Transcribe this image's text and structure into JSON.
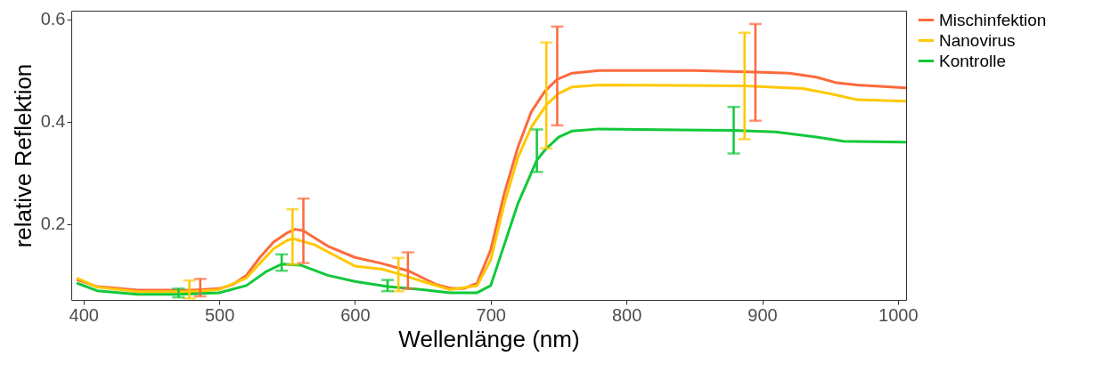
{
  "chart_data": {
    "type": "line",
    "xlabel": "Wellenlänge (nm)",
    "ylabel": "relative Reflektion",
    "xlim": [
      391,
      1006
    ],
    "ylim": [
      0.052,
      0.617
    ],
    "xticks": [
      400,
      500,
      600,
      700,
      800,
      900,
      1000
    ],
    "yticks": [
      0.2,
      0.4,
      0.6
    ],
    "grid": false,
    "legend": "right",
    "marker": "none",
    "line_style": "solid",
    "series": [
      {
        "name": "Mischinfektion",
        "color": "#fc6a3c",
        "x": [
          395,
          410,
          420,
          440,
          460,
          480,
          486,
          500,
          510,
          520,
          530,
          540,
          550,
          556,
          562,
          565,
          580,
          600,
          620,
          639,
          650,
          660,
          670,
          680,
          690,
          700,
          710,
          720,
          730,
          740,
          749,
          760,
          780,
          850,
          895,
          920,
          940,
          955,
          970,
          1006
        ],
        "values": [
          0.092,
          0.078,
          0.076,
          0.071,
          0.071,
          0.071,
          0.072,
          0.074,
          0.082,
          0.1,
          0.135,
          0.165,
          0.183,
          0.19,
          0.187,
          0.182,
          0.157,
          0.135,
          0.123,
          0.109,
          0.095,
          0.082,
          0.075,
          0.074,
          0.085,
          0.15,
          0.26,
          0.35,
          0.42,
          0.46,
          0.483,
          0.495,
          0.5,
          0.5,
          0.497,
          0.495,
          0.487,
          0.476,
          0.472,
          0.466
        ],
        "errors": [
          null,
          null,
          null,
          null,
          null,
          null,
          [
            0.059,
            0.093
          ],
          null,
          null,
          null,
          null,
          null,
          null,
          null,
          [
            0.124,
            0.25
          ],
          null,
          null,
          null,
          null,
          [
            0.074,
            0.145
          ],
          null,
          null,
          null,
          null,
          null,
          null,
          null,
          null,
          null,
          null,
          [
            0.393,
            0.586
          ],
          null,
          null,
          null,
          [
            0.402,
            0.591
          ],
          null,
          null,
          null,
          null,
          null
        ]
      },
      {
        "name": "Nanovirus",
        "color": "#ffc800",
        "x": [
          395,
          410,
          440,
          478,
          500,
          520,
          540,
          550,
          554,
          570,
          600,
          620,
          632,
          650,
          670,
          690,
          700,
          710,
          720,
          730,
          741,
          750,
          760,
          780,
          887,
          930,
          950,
          970,
          1006
        ],
        "values": [
          0.095,
          0.077,
          0.068,
          0.068,
          0.072,
          0.095,
          0.152,
          0.168,
          0.172,
          0.16,
          0.118,
          0.112,
          0.103,
          0.088,
          0.072,
          0.08,
          0.13,
          0.24,
          0.33,
          0.39,
          0.433,
          0.455,
          0.468,
          0.472,
          0.47,
          0.465,
          0.455,
          0.443,
          0.44
        ],
        "errors": [
          null,
          null,
          null,
          [
            0.055,
            0.09
          ],
          null,
          null,
          null,
          null,
          [
            0.121,
            0.229
          ],
          null,
          null,
          null,
          [
            0.069,
            0.134
          ],
          null,
          null,
          null,
          null,
          null,
          null,
          null,
          [
            0.348,
            0.555
          ],
          null,
          null,
          null,
          [
            0.366,
            0.574
          ],
          null,
          null,
          null,
          null
        ]
      },
      {
        "name": "Kontrolle",
        "color": "#12c83a",
        "x": [
          395,
          410,
          440,
          470,
          500,
          520,
          535,
          546,
          560,
          580,
          600,
          624,
          650,
          670,
          690,
          700,
          710,
          720,
          734,
          740,
          750,
          760,
          780,
          879,
          910,
          940,
          960,
          1006
        ],
        "values": [
          0.085,
          0.07,
          0.063,
          0.063,
          0.066,
          0.08,
          0.108,
          0.122,
          0.12,
          0.1,
          0.088,
          0.078,
          0.072,
          0.066,
          0.066,
          0.08,
          0.16,
          0.24,
          0.325,
          0.345,
          0.37,
          0.382,
          0.386,
          0.383,
          0.38,
          0.37,
          0.362,
          0.36
        ],
        "errors": [
          null,
          null,
          null,
          [
            0.057,
            0.074
          ],
          null,
          null,
          null,
          [
            0.109,
            0.141
          ],
          null,
          null,
          null,
          [
            0.069,
            0.091
          ],
          null,
          null,
          null,
          null,
          null,
          null,
          [
            0.302,
            0.385
          ],
          null,
          null,
          null,
          null,
          [
            0.338,
            0.429
          ],
          null,
          null,
          null,
          null
        ]
      }
    ]
  }
}
